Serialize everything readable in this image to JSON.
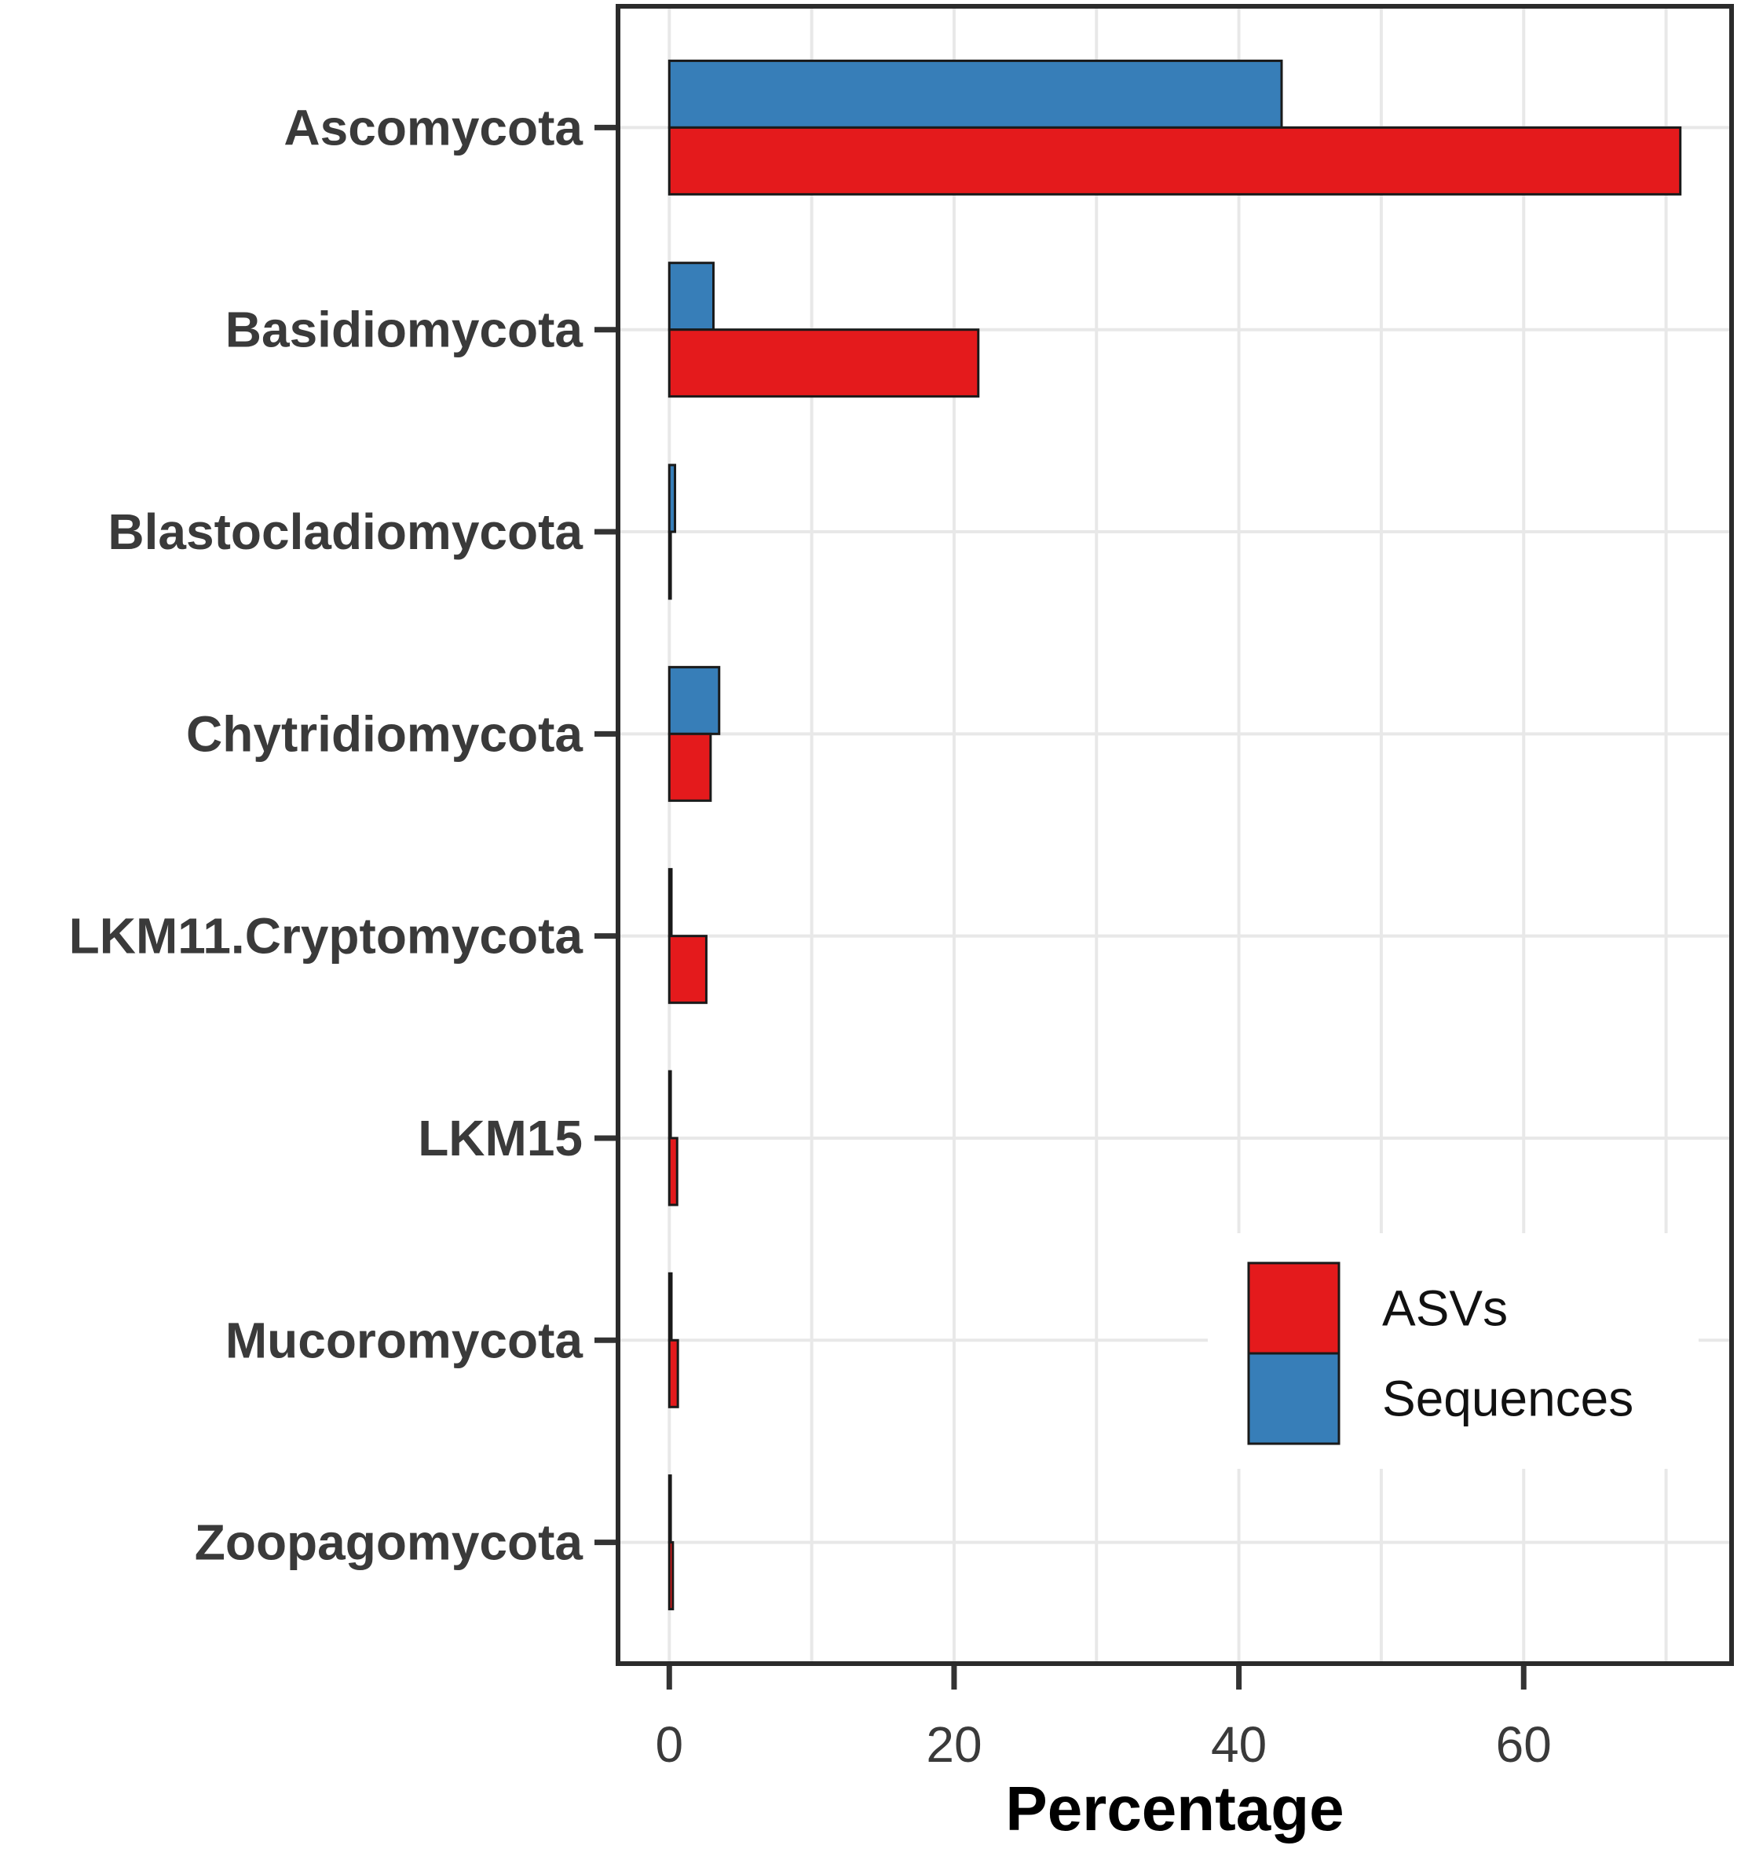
{
  "chart_data": {
    "type": "bar",
    "orientation": "horizontal",
    "title": "",
    "xlabel": "Percentage",
    "ylabel": "",
    "categories": [
      "Ascomycota",
      "Basidiomycota",
      "Blastocladiomycota",
      "Chytridiomycota",
      "LKM11.Cryptomycota",
      "LKM15",
      "Mucoromycota",
      "Zoopagomycota"
    ],
    "series": [
      {
        "name": "ASVs",
        "color": "#E41A1C",
        "values": [
          71.0,
          21.7,
          0.1,
          2.9,
          2.6,
          0.55,
          0.6,
          0.25
        ]
      },
      {
        "name": "Sequences",
        "color": "#377EB8",
        "values": [
          43.0,
          3.1,
          0.4,
          3.5,
          0.15,
          0.1,
          0.15,
          0.1
        ]
      }
    ],
    "x_tick_labels": [
      "0",
      "20",
      "40",
      "60"
    ],
    "x_ticks": [
      0,
      20,
      40,
      60
    ],
    "x_minor_ticks": [
      10,
      30,
      50,
      70
    ],
    "xlim": [
      -3.6,
      74.6
    ],
    "grid": true,
    "legend": {
      "position": "inside-bottom-right",
      "entries": [
        "ASVs",
        "Sequences"
      ]
    },
    "colors": {
      "bar_border": "#1A1A1A",
      "panel_border": "#2B2B2B",
      "gridline": "#E8E8E8",
      "tick": "#333333",
      "tick_label": "#3A3A3A",
      "category_label": "#3A3A3A",
      "axis_title": "#000000",
      "legend_text": "#111111",
      "background": "#FFFFFF"
    }
  }
}
